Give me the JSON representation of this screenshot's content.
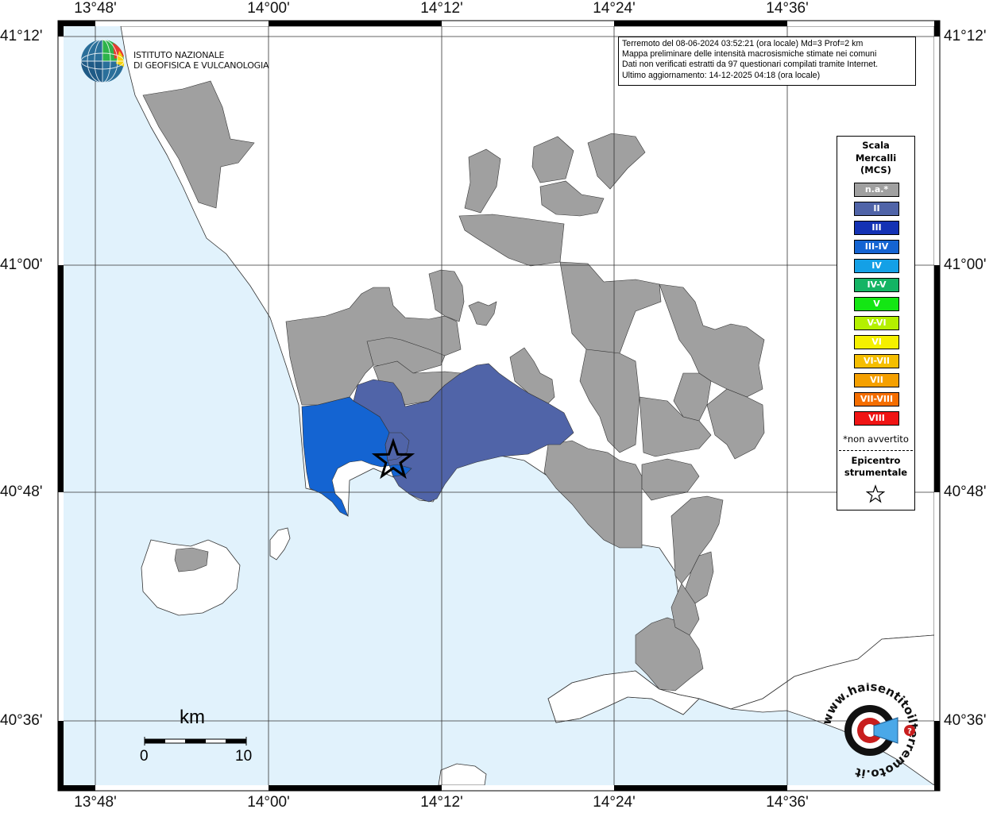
{
  "coords": {
    "lon_top": [
      "13°48'",
      "14°00'",
      "14°12'",
      "14°24'",
      "14°36'"
    ],
    "lon_bottom": [
      "13°48'",
      "14°00'",
      "14°12'",
      "14°24'",
      "14°36'"
    ],
    "lat_left": [
      "41°12'",
      "41°00'",
      "40°48'",
      "40°36'"
    ],
    "lat_right": [
      "41°12'",
      "41°00'",
      "40°48'",
      "40°36'"
    ]
  },
  "info_box": {
    "line1": "Terremoto del 08-06-2024 03:52:21 (ora locale) Md=3 Prof=2 km",
    "line2": "Mappa preliminare delle intensità macrosismiche stimate nei comuni",
    "line3": "Dati non verificati estratti da 97 questionari compilati tramite Internet.",
    "line4": "Ultimo aggiornamento: 14-12-2025 04:18 (ora locale)"
  },
  "ingv": {
    "line1": "ISTITUTO NAZIONALE",
    "line2": "DI GEOFISICA E VULCANOLOGIA"
  },
  "legend": {
    "title1": "Scala",
    "title2": "Mercalli",
    "title3": "(MCS)",
    "items": [
      {
        "label": "n.a.*",
        "color": "#a0a0a0"
      },
      {
        "label": "II",
        "color": "#5064a8"
      },
      {
        "label": "III",
        "color": "#1432b4"
      },
      {
        "label": "III-IV",
        "color": "#1464d2"
      },
      {
        "label": "IV",
        "color": "#14a0e6"
      },
      {
        "label": "IV-V",
        "color": "#14b464"
      },
      {
        "label": "V",
        "color": "#14e614"
      },
      {
        "label": "V-VI",
        "color": "#b4f000"
      },
      {
        "label": "VI",
        "color": "#f5f000"
      },
      {
        "label": "VI-VII",
        "color": "#f5be00"
      },
      {
        "label": "VII",
        "color": "#f5a000"
      },
      {
        "label": "VII-VIII",
        "color": "#f56e00"
      },
      {
        "label": "VIII",
        "color": "#f01414"
      }
    ],
    "note": "*non avvertito",
    "epicenter1": "Epicentro",
    "epicenter2": "strumentale"
  },
  "scale_bar": {
    "unit": "km",
    "zero": "0",
    "max": "10"
  },
  "colors": {
    "sea": "#e1f2fc",
    "land": "#ffffff",
    "not_available": "#a0a0a0",
    "intensity_II": "#5064a8",
    "intensity_III_IV": "#1464d2"
  },
  "icons": {
    "epicenter": "star-icon",
    "ingv_logo": "globe-logo-icon",
    "haisentito_logo": "target-megaphone-logo-icon"
  },
  "haisentito_logo_text": "www.haisentitoilterremoto.it"
}
